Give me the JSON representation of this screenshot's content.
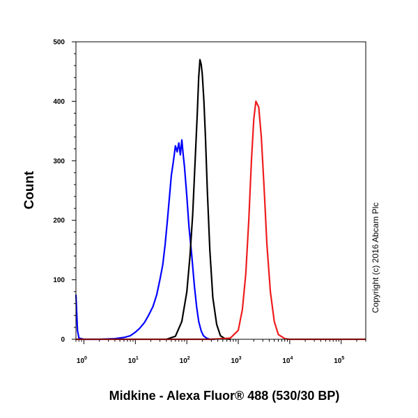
{
  "chart_data": {
    "type": "line",
    "title": "",
    "xlabel": "Midkine - Alexa Fluor® 488 (530/30 BP)",
    "ylabel": "Count",
    "x_scale": "log",
    "xlim": [
      0.7,
      300000
    ],
    "ylim": [
      0,
      500
    ],
    "y_ticks": [
      0,
      100,
      200,
      300,
      400,
      500
    ],
    "x_ticks": [
      {
        "base": "10",
        "exp": "0",
        "value": 1
      },
      {
        "base": "10",
        "exp": "1",
        "value": 10
      },
      {
        "base": "10",
        "exp": "2",
        "value": 100
      },
      {
        "base": "10",
        "exp": "3",
        "value": 1000
      },
      {
        "base": "10",
        "exp": "4",
        "value": 10000
      },
      {
        "base": "10",
        "exp": "5",
        "value": 100000
      }
    ],
    "grid": false,
    "legend": "none",
    "annotation": "Copyright (c) 2016 Abcam Plc",
    "series": [
      {
        "color": "#0000ff",
        "x": [
          0.7,
          0.75,
          0.8,
          1,
          2,
          4,
          6,
          8,
          10,
          12,
          15,
          18,
          22,
          26,
          30,
          34,
          38,
          42,
          46,
          50,
          55,
          60,
          65,
          70,
          75,
          80,
          85,
          90,
          100,
          110,
          125,
          140,
          155,
          170,
          190,
          210,
          240,
          280,
          350
        ],
        "y": [
          75,
          15,
          2,
          0,
          0,
          1,
          3,
          6,
          12,
          18,
          28,
          40,
          55,
          75,
          100,
          125,
          160,
          200,
          240,
          275,
          300,
          325,
          315,
          330,
          310,
          335,
          310,
          290,
          240,
          190,
          140,
          90,
          55,
          30,
          14,
          6,
          2,
          0,
          0
        ]
      },
      {
        "color": "#000000",
        "x": [
          40,
          60,
          80,
          100,
          115,
          130,
          145,
          160,
          170,
          180,
          190,
          200,
          215,
          230,
          250,
          280,
          320,
          380,
          450,
          550,
          700
        ],
        "y": [
          0,
          5,
          30,
          80,
          140,
          210,
          300,
          380,
          440,
          470,
          462,
          445,
          400,
          340,
          250,
          150,
          70,
          25,
          6,
          1,
          0
        ]
      },
      {
        "color": "#ee1c1c",
        "x": [
          0.7,
          300,
          700,
          1000,
          1200,
          1400,
          1600,
          1800,
          2000,
          2200,
          2500,
          2800,
          3200,
          3600,
          4200,
          5000,
          6000,
          8000,
          10000,
          300000
        ],
        "y": [
          0,
          0,
          2,
          15,
          50,
          110,
          200,
          300,
          370,
          400,
          390,
          340,
          250,
          160,
          80,
          30,
          8,
          1,
          0,
          0
        ]
      }
    ]
  }
}
